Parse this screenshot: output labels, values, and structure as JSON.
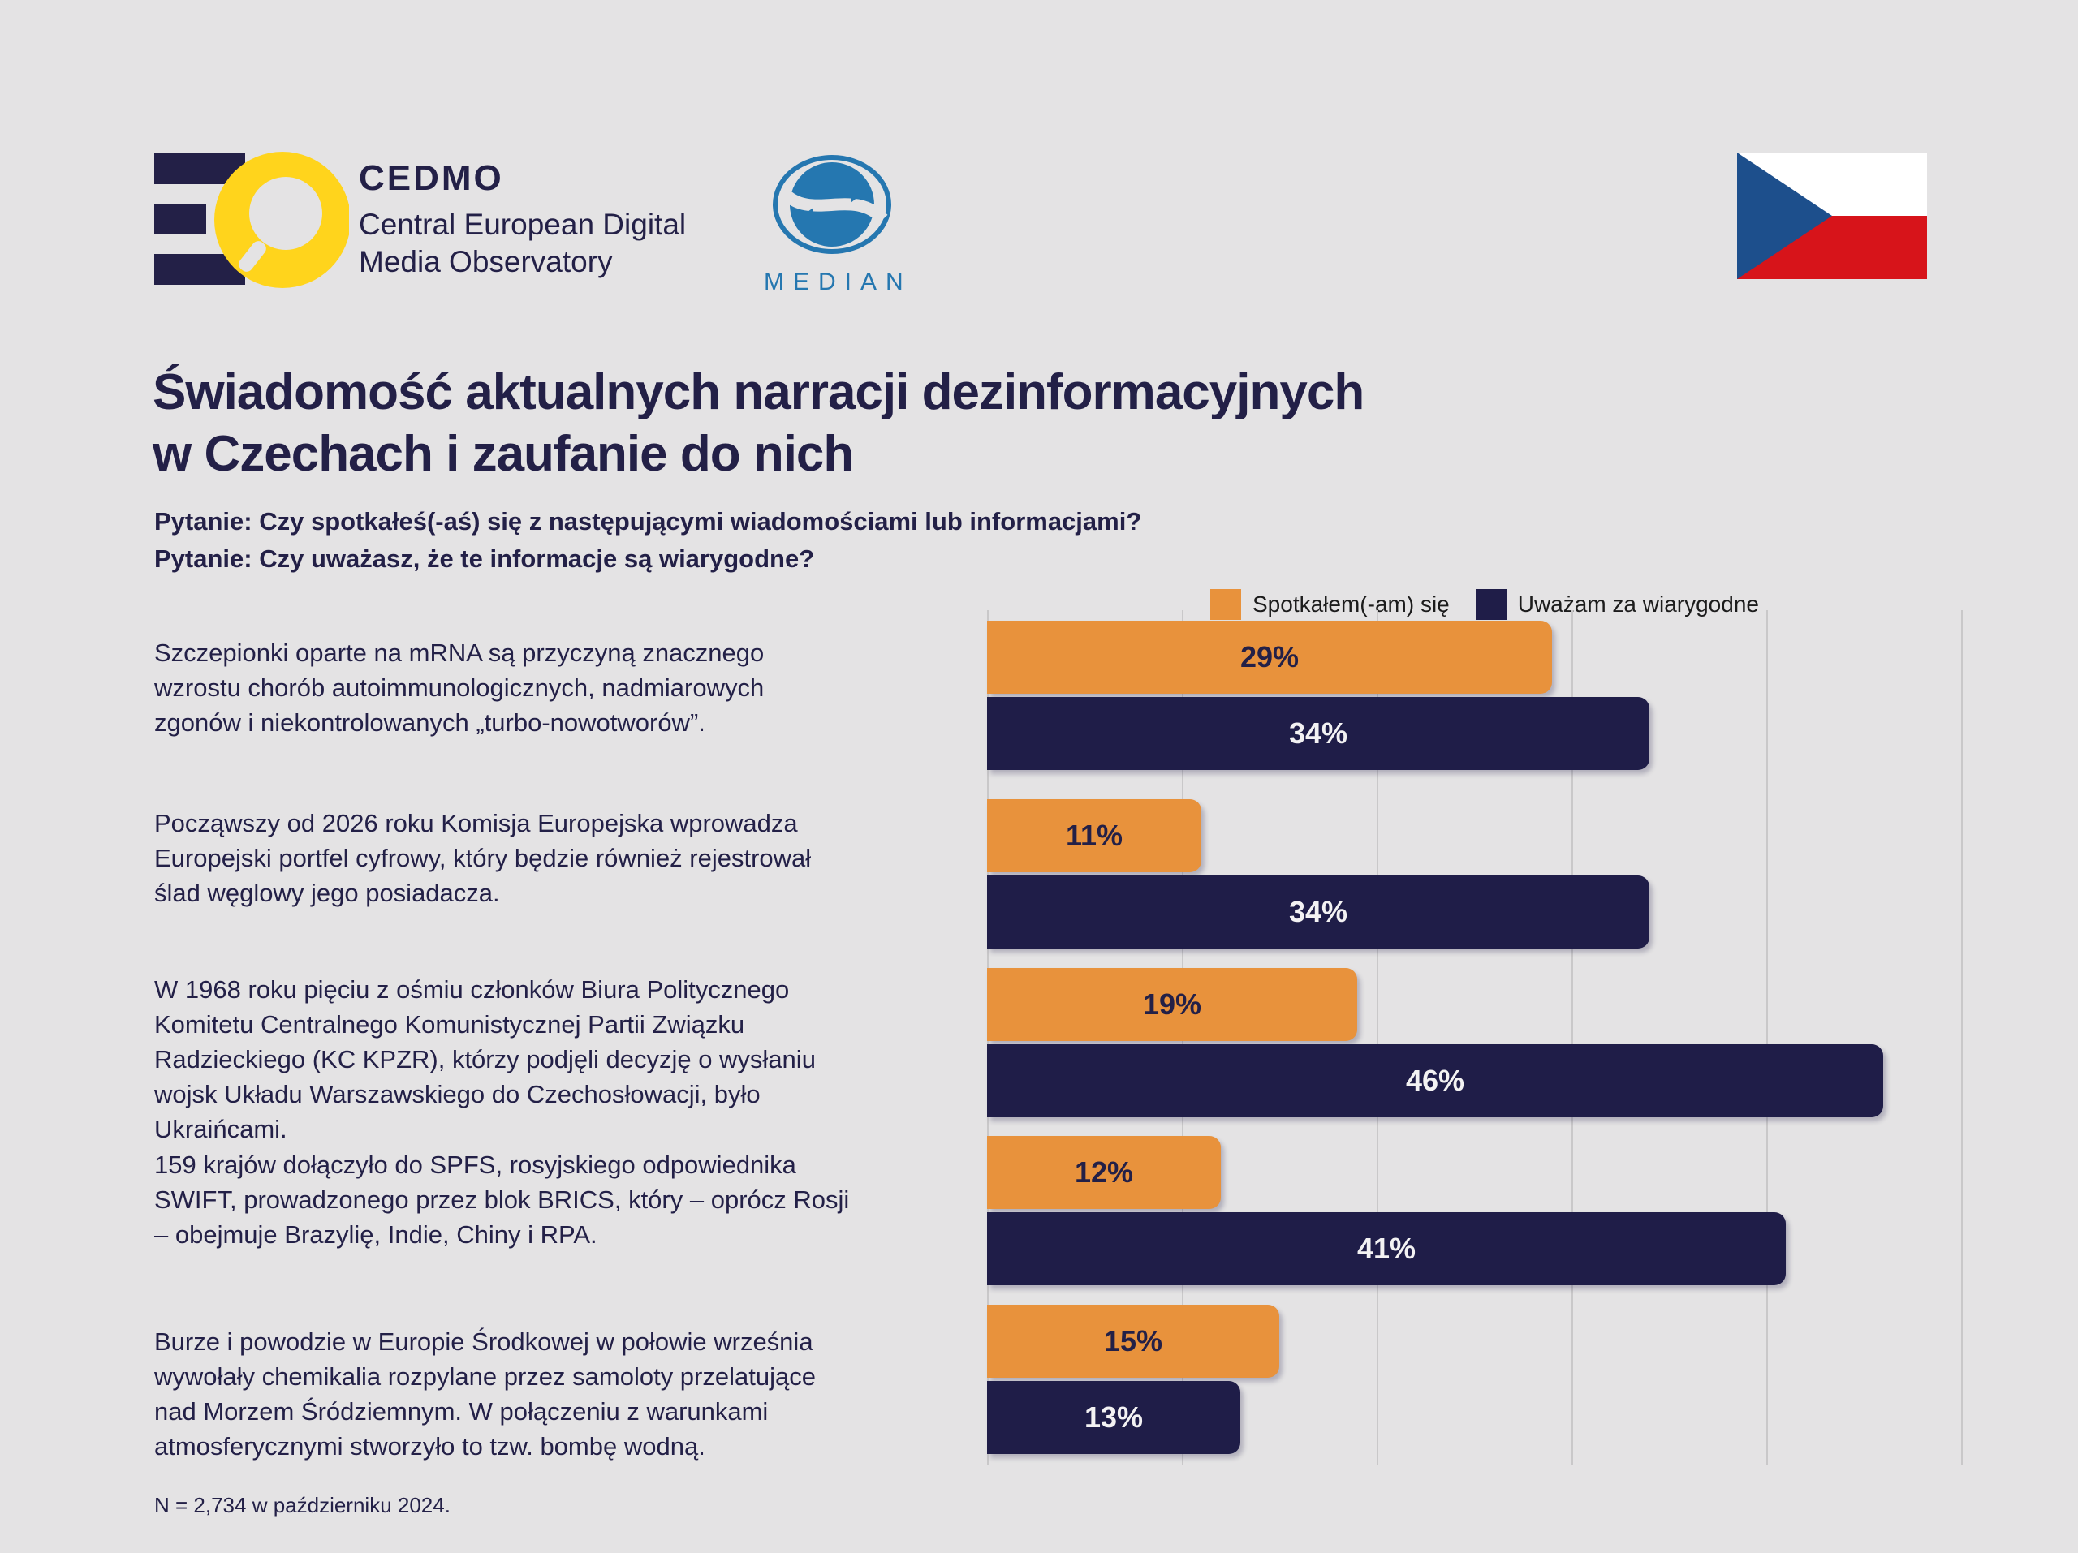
{
  "header": {
    "cedmo": {
      "brand": "CEDMO",
      "line1": "Central European Digital",
      "line2": "Media Observatory"
    },
    "median_label": "MEDIAN"
  },
  "title": {
    "line1": "Świadomość aktualnych narracji dezinformacyjnych",
    "line2": "w Czechach i zaufanie do nich"
  },
  "questions": {
    "q1": "Pytanie: Czy spotkałeś(-aś) się z następującymi wiadomościami lub informacjami?",
    "q2": "Pytanie: Czy uważasz, że te informacje są wiarygodne?"
  },
  "legend": {
    "seen": "Spotkałem(-am) się",
    "trust": "Uważam za wiarygodne"
  },
  "footnote": "N = 2,734 w październiku 2024.",
  "colors": {
    "background": "#e4e3e4",
    "bar_seen_orange": "#e8923c",
    "bar_trust_navy": "#1f1d48",
    "text_navy": "#232047",
    "legend_text": "#1c1c1c",
    "gridline": "#c9c8c9",
    "cedmo_yellow": "#ffd41c",
    "median_blue": "#2577b0",
    "flag_blue": "#1d4f8c",
    "flag_red": "#d7141a",
    "flag_white": "#ffffff"
  },
  "rows": [
    {
      "statement": "Szczepionki oparte na mRNA są przyczyną znacznego\nwzrostu chorób autoimmunologicznych, nadmiarowych\nzgonów i niekontrolowanych „turbo-nowotworów”.",
      "seen": "29%",
      "trust": "34%"
    },
    {
      "statement": "Począwszy od 2026 roku Komisja Europejska wprowadza\nEuropejski portfel cyfrowy, który będzie również rejestrował\nślad węglowy jego posiadacza.",
      "seen": "11%",
      "trust": "34%"
    },
    {
      "statement": "W 1968 roku pięciu z ośmiu członków Biura Politycznego\nKomitetu Centralnego Komunistycznej Partii Związku\nRadzieckiego (KC KPZR), którzy podjęli decyzję o wysłaniu\nwojsk Układu Warszawskiego do Czechosłowacji, było\nUkraińcami.",
      "seen": "19%",
      "trust": "46%"
    },
    {
      "statement": "159 krajów dołączyło do SPFS, rosyjskiego odpowiednika\nSWIFT, prowadzonego przez blok BRICS, który – oprócz Rosji\n– obejmuje Brazylię, Indie, Chiny i RPA.",
      "seen": "12%",
      "trust": "41%"
    },
    {
      "statement": "Burze i powodzie w Europie Środkowej w połowie września\nwywołały chemikalia rozpylane przez samoloty przelatujące\nnad Morzem Śródziemnym. W połączeniu z warunkami\natmosferycznymi stworzyło to tzw. bombę wodną.",
      "seen": "15%",
      "trust": "13%"
    }
  ],
  "chart_data": {
    "type": "bar",
    "orientation": "horizontal",
    "title": "Świadomość aktualnych narracji dezinformacyjnych w Czechach i zaufanie do nich",
    "unit": "%",
    "xlim": [
      0,
      50
    ],
    "gridlines": [
      0,
      10,
      20,
      30,
      40,
      50
    ],
    "grid": true,
    "legend_position": "top-right",
    "categories": [
      "Szczepionki oparte na mRNA są przyczyną znacznego wzrostu chorób autoimmunologicznych, nadmiarowych zgonów i niekontrolowanych „turbo-nowotworów”.",
      "Począwszy od 2026 roku Komisja Europejska wprowadza Europejski portfel cyfrowy, który będzie również rejestrował ślad węglowy jego posiadacza.",
      "W 1968 roku pięciu z ośmiu członków Biura Politycznego Komitetu Centralnego Komunistycznej Partii Związku Radzieckiego (KC KPZR), którzy podjęli decyzję o wysłaniu wojsk Układu Warszawskiego do Czechosłowacji, było Ukraińcami.",
      "159 krajów dołączyło do SPFS, rosyjskiego odpowiednika SWIFT, prowadzonego przez blok BRICS, który – oprócz Rosji – obejmuje Brazylię, Indie, Chiny i RPA.",
      "Burze i powodzie w Europie Środkowej w połowie września wywołały chemikalia rozpylane przez samoloty przelatujące nad Morzem Śródziemnym. W połączeniu z warunkami atmosferycznymi stworzyło to tzw. bombę wodną."
    ],
    "series": [
      {
        "name": "Spotkałem(-am) się",
        "color": "#e8923c",
        "values": [
          29,
          11,
          19,
          12,
          15
        ]
      },
      {
        "name": "Uważam za wiarygodne",
        "color": "#1f1d48",
        "values": [
          34,
          34,
          46,
          41,
          13
        ]
      }
    ]
  }
}
